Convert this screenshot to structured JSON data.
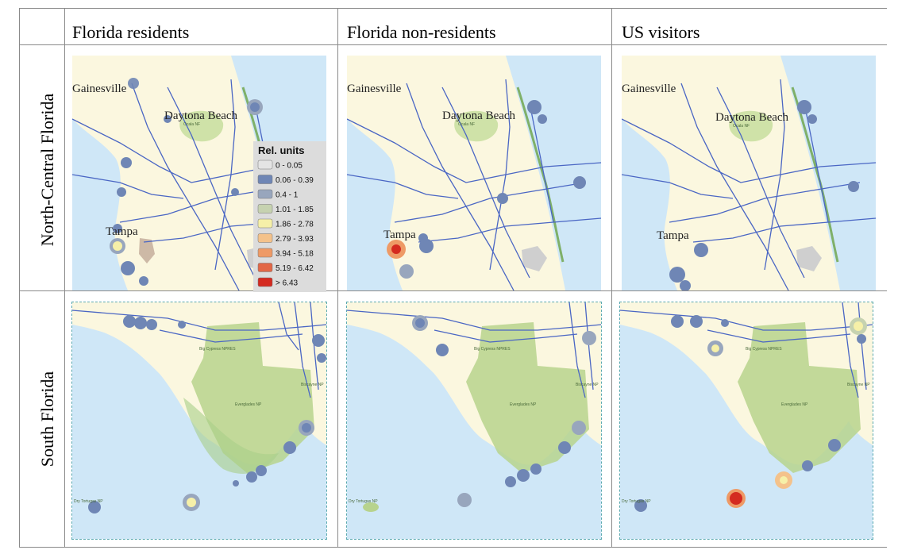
{
  "columns": {
    "residents": "Florida residents",
    "non_residents": "Florida non-residents",
    "us_visitors": "US visitors"
  },
  "rows": {
    "north": "North-Central Florida",
    "south": "South Florida"
  },
  "north_labels": {
    "gainesville": "Gainesville",
    "daytona": "Daytona Beach",
    "tampa": "Tampa",
    "ocala_nf": "Ocala NF"
  },
  "south_labels": {
    "big_cypress": "Big Cypress NPRES",
    "everglades": "Everglades NP",
    "biscayne": "Biscayne NP",
    "dry_tortugas": "Dry Tortugas NP"
  },
  "legend": {
    "title": "Rel. units",
    "classes": [
      {
        "label": "0 - 0.05",
        "color": "#e4e4e4"
      },
      {
        "label": "0.06 - 0.39",
        "color": "#6f86b5"
      },
      {
        "label": "0.4 - 1",
        "color": "#98a6bd"
      },
      {
        "label": "1.01 - 1.85",
        "color": "#c6d2b0"
      },
      {
        "label": "1.86 - 2.78",
        "color": "#f6f0a8"
      },
      {
        "label": "2.79 - 3.93",
        "color": "#f4c28b"
      },
      {
        "label": "3.94 - 5.18",
        "color": "#ee9a66"
      },
      {
        "label": "5.19 - 6.42",
        "color": "#e26746"
      },
      {
        "label": "> 6.43",
        "color": "#d42a20"
      }
    ]
  },
  "colors": {
    "water": "#cfe7f7",
    "land": "#fbf7df",
    "park": "#cfe2a8",
    "road": "#4a66c4",
    "hotspot_low": "#6f86b5",
    "hotspot_high": "#d42a20"
  }
}
